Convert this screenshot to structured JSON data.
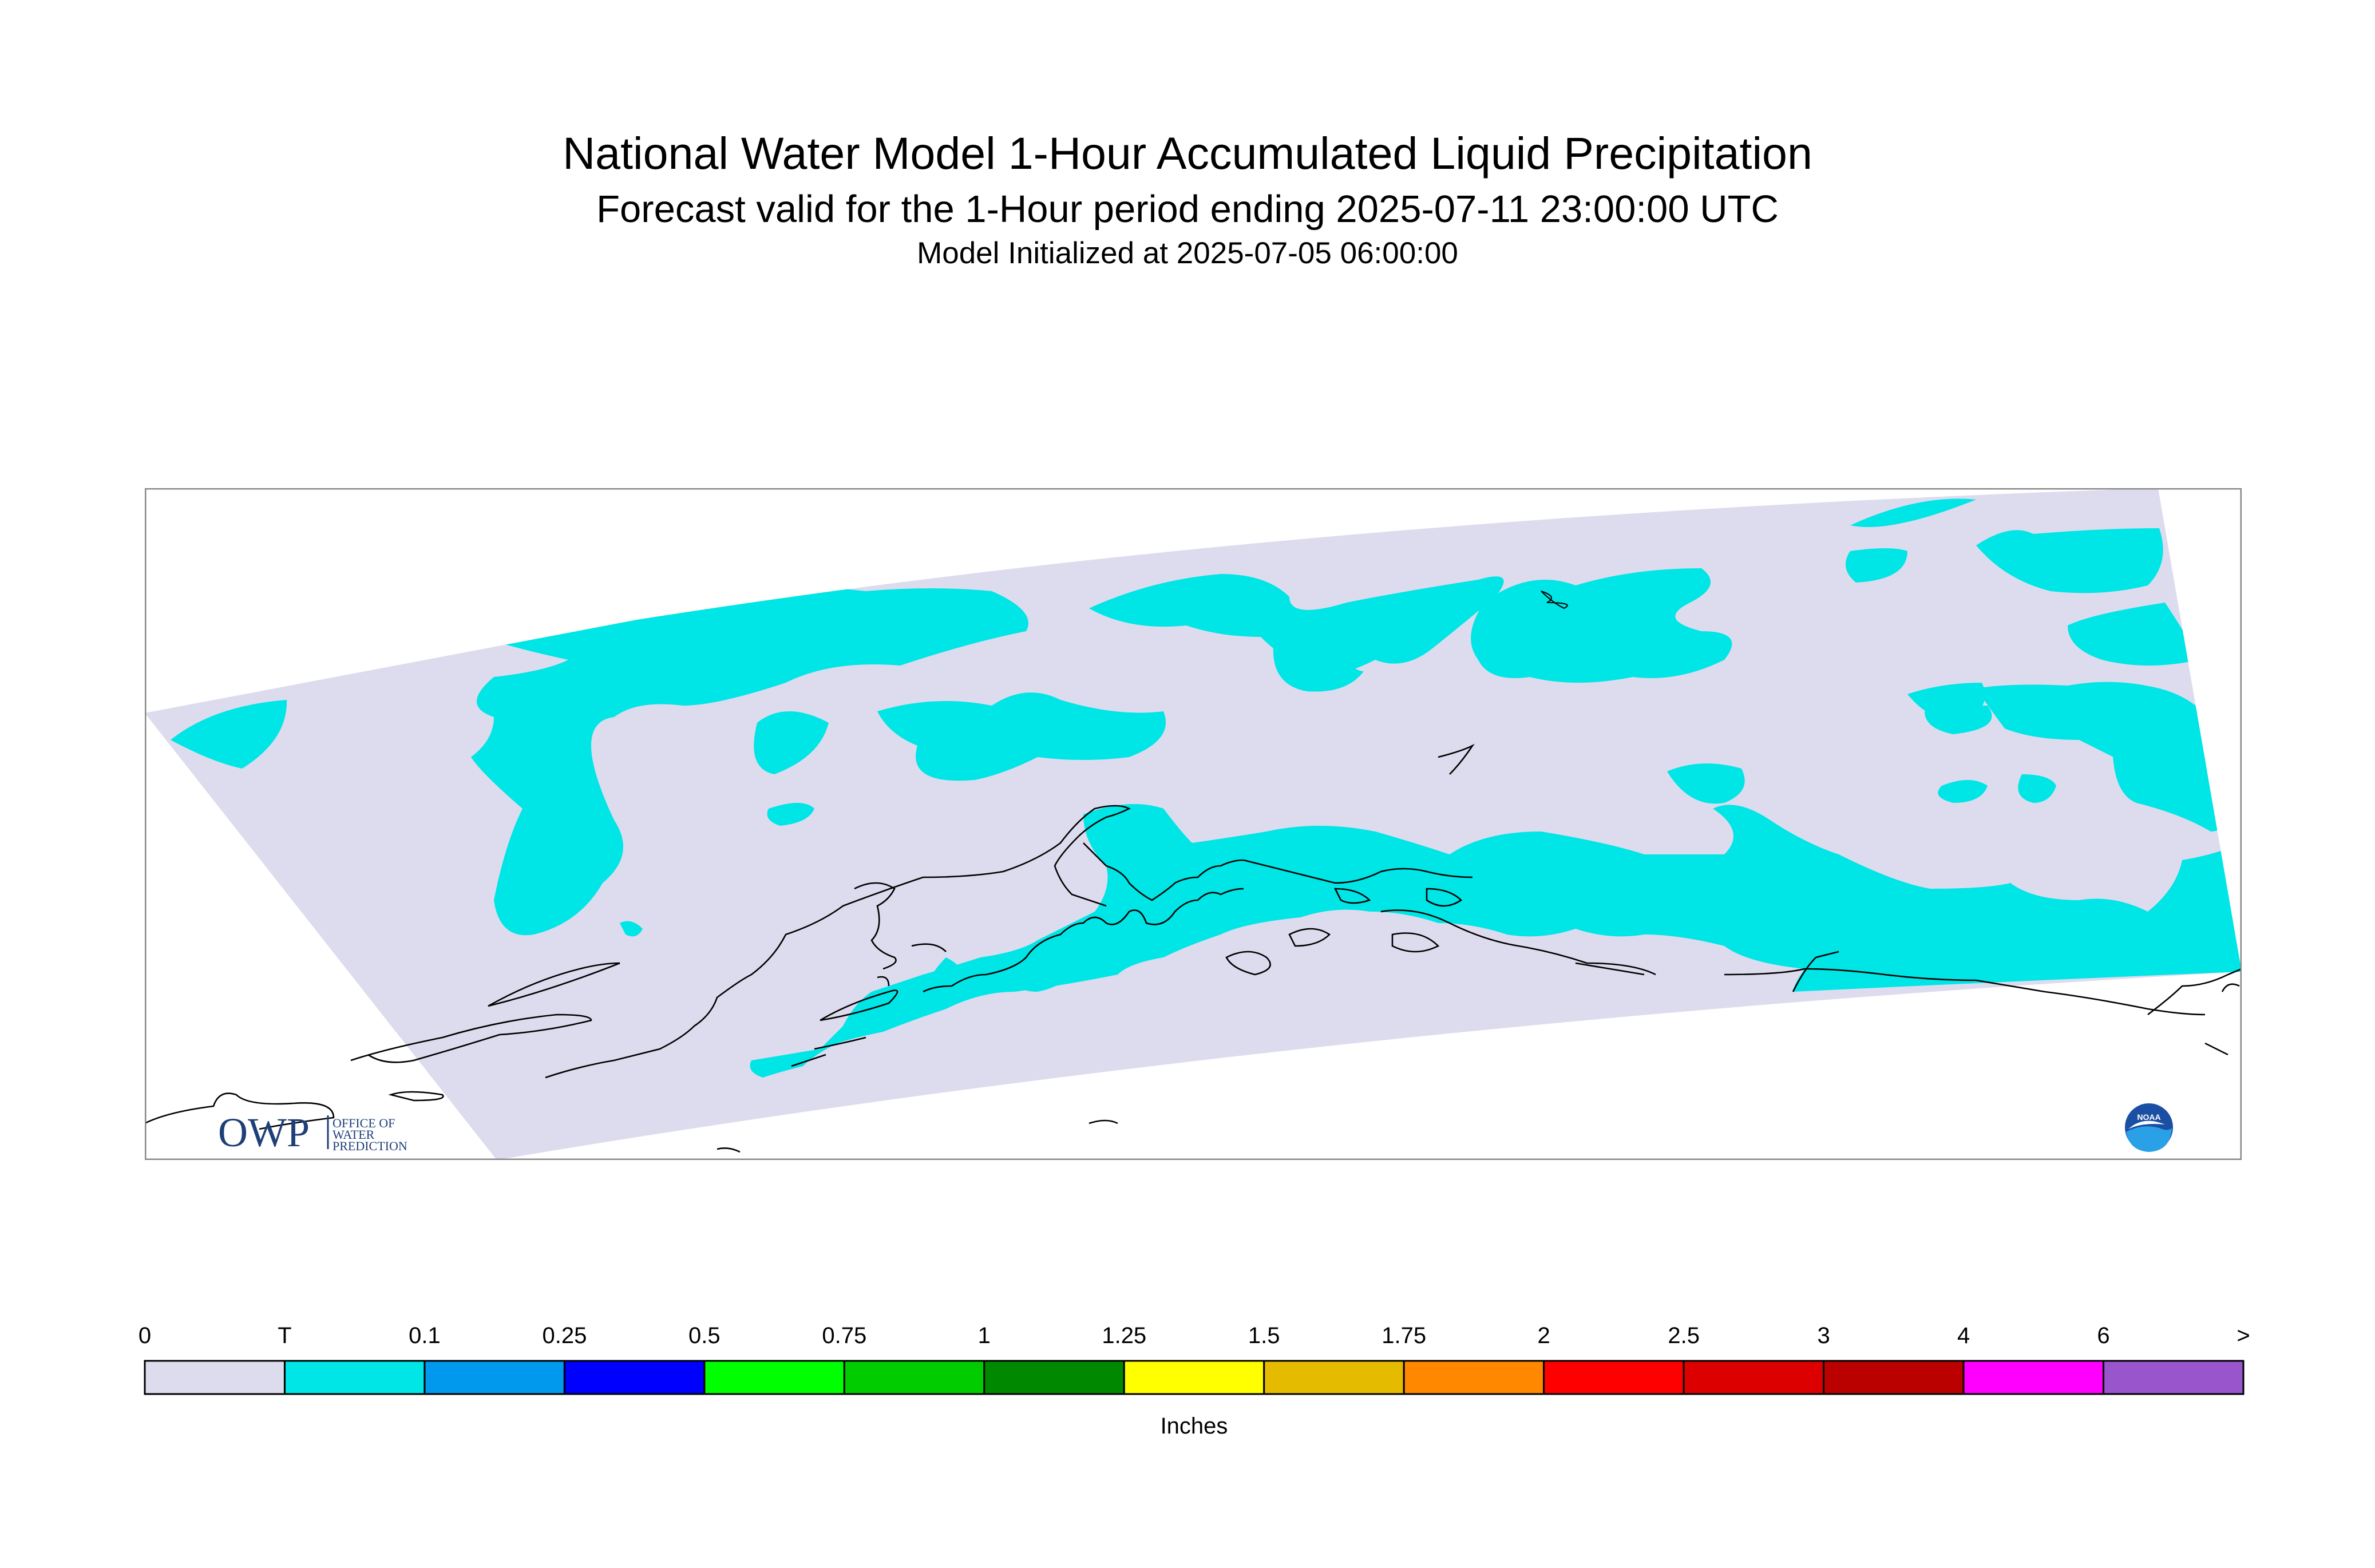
{
  "title": "National Water Model 1-Hour Accumulated Liquid Precipitation",
  "subtitle": "Forecast valid for the 1-Hour period ending 2025-07-11 23:00:00 UTC",
  "init_line": "Model Initialized at 2025-07-05 06:00:00",
  "logos": {
    "owp_mark": "OWP",
    "owp_text": [
      "OFFICE OF",
      "WATER",
      "PREDICTION"
    ],
    "noaa_text": "NOAA"
  },
  "map": {
    "domain_color": "#dcdcee",
    "precip_color": "#00e5e5",
    "coastline_color": "#000000"
  },
  "legend": {
    "unit_label": "Inches",
    "tick_labels": [
      "0",
      "T",
      "0.1",
      "0.25",
      "0.5",
      "0.75",
      "1",
      "1.25",
      "1.5",
      "1.75",
      "2",
      "2.5",
      "3",
      "4",
      "6",
      ">"
    ],
    "bin_colors": [
      "#dcdcee",
      "#00e5e5",
      "#0099ee",
      "#0000ff",
      "#00ff00",
      "#00cc00",
      "#008800",
      "#ffff00",
      "#e5bb00",
      "#ff8800",
      "#ff0000",
      "#dd0000",
      "#bb0000",
      "#ff00ff",
      "#9955cc"
    ]
  }
}
